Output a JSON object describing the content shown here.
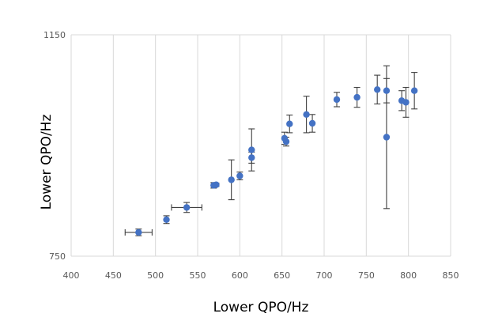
{
  "chart_data": {
    "type": "scatter",
    "xlabel": "Lower QPO/Hz",
    "ylabel": "Lower QPO/Hz",
    "xlim": [
      400,
      850
    ],
    "ylim": [
      750,
      1150
    ],
    "x_ticks": [
      "400",
      "450",
      "500",
      "550",
      "600",
      "650",
      "700",
      "750",
      "800",
      "850"
    ],
    "y_ticks": [
      "750",
      "1150"
    ],
    "grid": "vertical",
    "series": [
      {
        "color": "#4472C4",
        "points": [
          {
            "x": 480,
            "y": 793,
            "y_err": 6,
            "x_err": 16
          },
          {
            "x": 513,
            "y": 816,
            "y_err": 7,
            "x_err": 0
          },
          {
            "x": 537,
            "y": 838,
            "y_err": 9,
            "x_err": 18
          },
          {
            "x": 569,
            "y": 878,
            "y_err": 5,
            "x_err": 0
          },
          {
            "x": 572,
            "y": 879,
            "y_err": 3,
            "x_err": 0
          },
          {
            "x": 590,
            "y": 888,
            "y_err": 36,
            "x_err": 0
          },
          {
            "x": 600,
            "y": 895,
            "y_err": 7,
            "x_err": 0
          },
          {
            "x": 614,
            "y": 928,
            "y_err": 10,
            "x_err": 0
          },
          {
            "x": 614,
            "y": 942,
            "y_err": 38,
            "x_err": 0
          },
          {
            "x": 653,
            "y": 963,
            "y_err": 11,
            "x_err": 0
          },
          {
            "x": 655,
            "y": 957,
            "y_err": 8,
            "x_err": 0
          },
          {
            "x": 659,
            "y": 989,
            "y_err": 16,
            "x_err": 0
          },
          {
            "x": 679,
            "y": 1006,
            "y_err": 33,
            "x_err": 0
          },
          {
            "x": 686,
            "y": 990,
            "y_err": 16,
            "x_err": 0
          },
          {
            "x": 715,
            "y": 1033,
            "y_err": 13,
            "x_err": 0
          },
          {
            "x": 739,
            "y": 1037,
            "y_err": 18,
            "x_err": 0
          },
          {
            "x": 763,
            "y": 1051,
            "y_err": 26,
            "x_err": 0
          },
          {
            "x": 774,
            "y": 1049,
            "y_err": 22,
            "x_err": 0
          },
          {
            "x": 774,
            "y": 965,
            "y_err": 129,
            "x_err": 0
          },
          {
            "x": 792,
            "y": 1031,
            "y_err": 18,
            "x_err": 0
          },
          {
            "x": 797,
            "y": 1028,
            "y_err": 27,
            "x_err": 0
          },
          {
            "x": 807,
            "y": 1049,
            "y_err": 33,
            "x_err": 0
          }
        ]
      }
    ]
  }
}
